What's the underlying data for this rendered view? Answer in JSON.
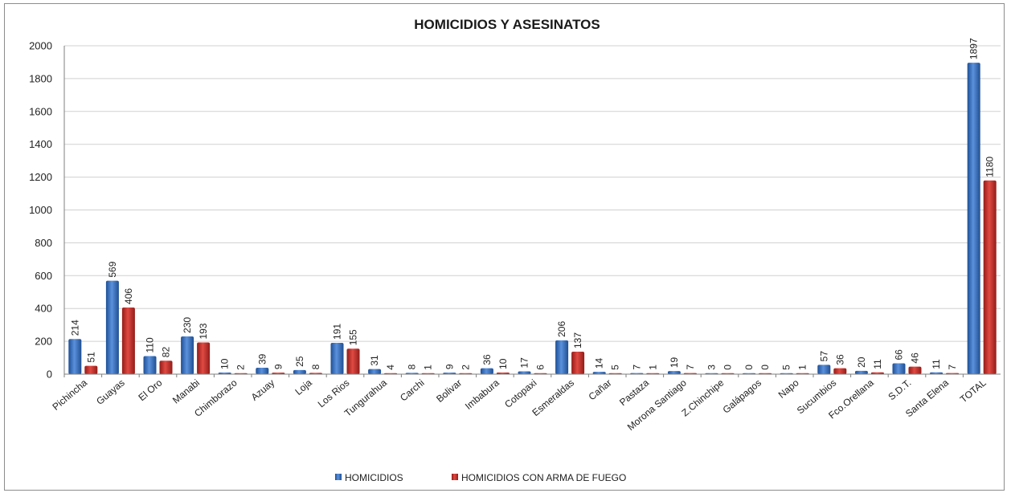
{
  "chart_data": {
    "type": "bar",
    "title": "HOMICIDIOS Y ASESINATOS",
    "xlabel": "",
    "ylabel": "",
    "ylim": [
      0,
      2000
    ],
    "yticks": [
      0,
      200,
      400,
      600,
      800,
      1000,
      1200,
      1400,
      1600,
      1800,
      2000
    ],
    "grid": true,
    "legend_position": "bottom",
    "categories": [
      "Pichincha",
      "Guayas",
      "El Oro",
      "Manabi",
      "Chimborazo",
      "Azuay",
      "Loja",
      "Los Rios",
      "Tungurahua",
      "Carchi",
      "Bolivar",
      "Imbabura",
      "Cotopaxi",
      "Esmeraldas",
      "Cañar",
      "Pastaza",
      "Morona Santiago",
      "Z.Chinchipe",
      "Galápagos",
      "Napo",
      "Sucumbios",
      "Fco.Orellana",
      "S.D.T.",
      "Santa Elena",
      "TOTAL"
    ],
    "series": [
      {
        "name": "HOMICIDIOS",
        "color": "#2e68b8",
        "values": [
          214,
          569,
          110,
          230,
          10,
          39,
          25,
          191,
          31,
          8,
          9,
          36,
          17,
          206,
          14,
          7,
          19,
          3,
          0,
          5,
          57,
          20,
          66,
          11,
          1897
        ]
      },
      {
        "name": "HOMICIDIOS CON ARMA DE FUEGO",
        "color": "#c32b27",
        "values": [
          51,
          406,
          82,
          193,
          2,
          9,
          8,
          155,
          4,
          1,
          2,
          10,
          6,
          137,
          5,
          1,
          7,
          0,
          0,
          1,
          36,
          11,
          46,
          7,
          1180
        ]
      }
    ]
  }
}
